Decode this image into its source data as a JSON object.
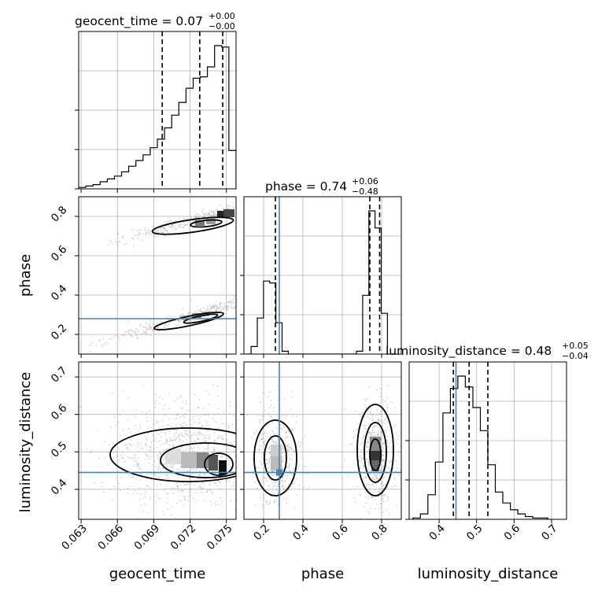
{
  "chart_data": {
    "type": "corner",
    "parameters": [
      "geocent_time",
      "phase",
      "luminosity_distance"
    ],
    "truths": {
      "geocent_time": null,
      "phase": 0.28,
      "luminosity_distance": 0.445
    },
    "grid": true,
    "panels": {
      "geocent_time": {
        "title": {
          "main": "geocent_time = 0.07",
          "upper": "+0.00",
          "lower": "−0.00"
        },
        "xlim": [
          0.0628,
          0.0758
        ],
        "quantiles": [
          0.0697,
          0.0728,
          0.0747
        ],
        "hist": [
          1,
          2,
          3,
          5,
          7,
          9,
          12,
          16,
          20,
          24,
          29,
          35,
          43,
          52,
          61,
          71,
          78,
          79,
          86,
          101,
          100,
          27
        ]
      },
      "phase": {
        "title": {
          "main": "phase = 0.74",
          "upper": "+0.06",
          "lower": "−0.48"
        },
        "xlim": [
          0.1,
          0.9
        ],
        "quantiles": [
          0.26,
          0.74,
          0.79
        ],
        "hist": [
          0,
          8,
          38,
          77,
          75,
          33,
          3,
          0,
          0,
          0,
          0,
          0,
          0,
          0,
          0,
          0,
          0,
          0,
          3,
          62,
          151,
          133,
          43,
          0
        ],
        "hist_x0": 0.105,
        "hist_dx": 0.0315
      },
      "luminosity_distance": {
        "title": {
          "main": "luminosity_distance = 0.48",
          "upper": "+0.05",
          "lower": "−0.04"
        },
        "xlim": [
          0.32,
          0.74
        ],
        "quantiles": [
          0.438,
          0.48,
          0.53
        ],
        "hist": [
          1,
          4,
          18,
          42,
          78,
          96,
          105,
          97,
          82,
          65,
          40,
          20,
          12,
          7,
          4,
          2,
          1,
          1
        ],
        "hist_x0": 0.33,
        "hist_dx": 0.02
      }
    },
    "axes": {
      "geocent_time": {
        "ticks": [
          "0.063",
          "0.066",
          "0.069",
          "0.072",
          "0.075"
        ],
        "values": [
          0.063,
          0.066,
          0.069,
          0.072,
          0.075
        ]
      },
      "phase": {
        "ticks": [
          "0.2",
          "0.4",
          "0.6",
          "0.8"
        ],
        "values": [
          0.2,
          0.4,
          0.6,
          0.8
        ],
        "lim": [
          0.1,
          0.9
        ]
      },
      "luminosity_distance": {
        "ticks": [
          "0.4",
          "0.5",
          "0.6",
          "0.7"
        ],
        "values": [
          0.4,
          0.5,
          0.6,
          0.7
        ],
        "lim": [
          0.32,
          0.74
        ]
      }
    },
    "colors": {
      "truth": "#4682b4",
      "line": "#000000",
      "grid": "#b0b0b0",
      "samples": "#808080"
    }
  }
}
